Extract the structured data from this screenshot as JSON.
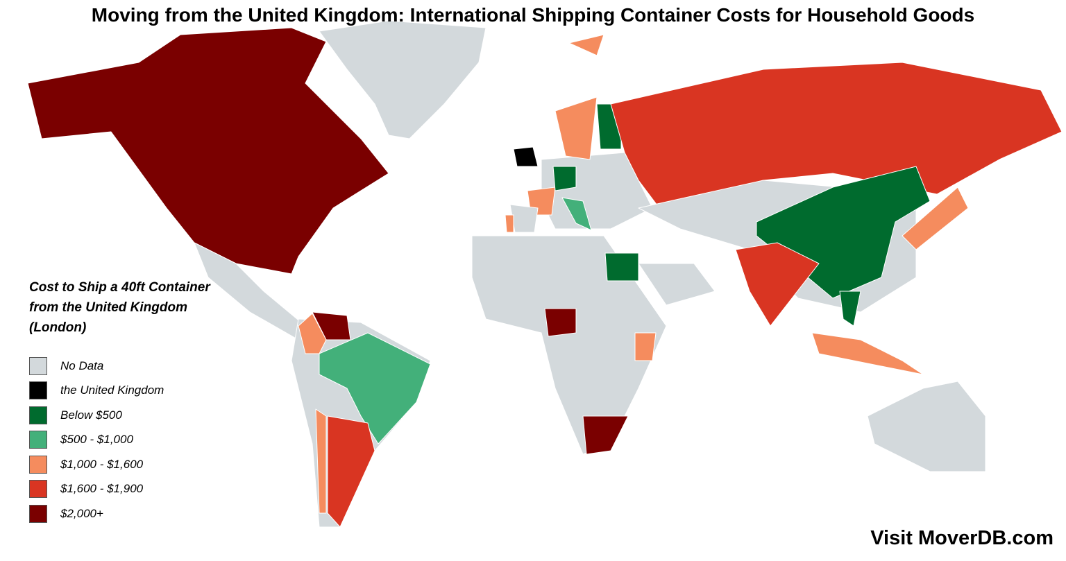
{
  "title": "Moving from the United Kingdom: International Shipping Container Costs for Household Goods",
  "legend": {
    "title": "Cost to Ship a 40ft Container from the United Kingdom (London)",
    "items": [
      {
        "label": "No Data",
        "color": "#d3d9dc"
      },
      {
        "label": "the United Kingdom",
        "color": "#000000"
      },
      {
        "label": "Below $500",
        "color": "#006b2e"
      },
      {
        "label": "$500 - $1,000",
        "color": "#43b07a"
      },
      {
        "label": "$1,000 - $1,600",
        "color": "#f58c5e"
      },
      {
        "label": "$1,600 - $1,900",
        "color": "#d93522"
      },
      {
        "label": "$2,000+",
        "color": "#7a0000"
      }
    ]
  },
  "footer": "Visit MoverDB.com"
}
